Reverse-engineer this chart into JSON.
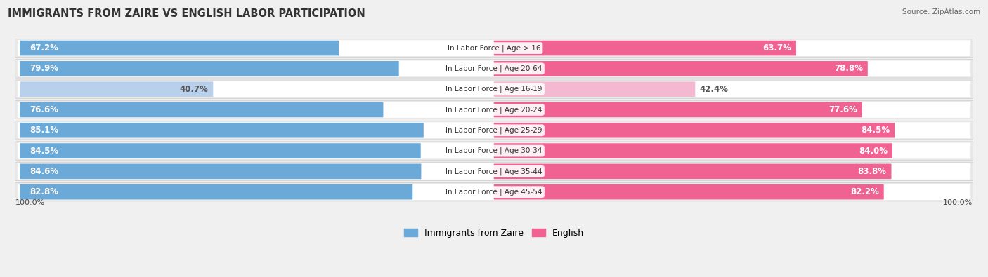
{
  "title": "IMMIGRANTS FROM ZAIRE VS ENGLISH LABOR PARTICIPATION",
  "source": "Source: ZipAtlas.com",
  "categories": [
    "In Labor Force | Age > 16",
    "In Labor Force | Age 20-64",
    "In Labor Force | Age 16-19",
    "In Labor Force | Age 20-24",
    "In Labor Force | Age 25-29",
    "In Labor Force | Age 30-34",
    "In Labor Force | Age 35-44",
    "In Labor Force | Age 45-54"
  ],
  "zaire_values": [
    67.2,
    79.9,
    40.7,
    76.6,
    85.1,
    84.5,
    84.6,
    82.8
  ],
  "english_values": [
    63.7,
    78.8,
    42.4,
    77.6,
    84.5,
    84.0,
    83.8,
    82.2
  ],
  "zaire_color": "#6aa9d8",
  "zaire_color_light": "#b8d0ec",
  "english_color": "#f06292",
  "english_color_light": "#f4b8d0",
  "bg_color": "#f0f0f0",
  "row_bg_color": "#e8e8e8",
  "row_inner_color": "#ffffff",
  "max_val": 100.0,
  "legend_zaire": "Immigrants from Zaire",
  "legend_english": "English",
  "label_fontsize": 8.5,
  "cat_fontsize": 7.5,
  "title_fontsize": 10.5
}
